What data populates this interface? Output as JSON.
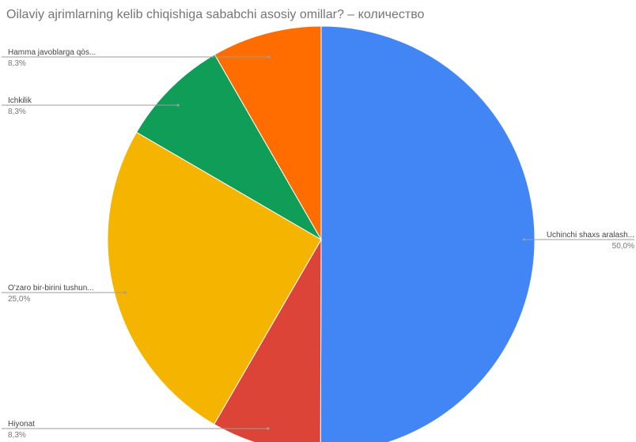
{
  "chart_title": "Oilaviy ajrimlarning kelib chiqishiga sababchi asosiy omillar?  – количество",
  "chart_data": {
    "type": "pie",
    "title": "Oilaviy ajrimlarning kelib chiqishiga sababchi asosiy omillar?  – количество",
    "start": "12 o'clock",
    "direction": "clockwise",
    "legend": "labels beside slices",
    "slices": [
      {
        "label": "Uchinchi shaxs aralash...",
        "value": 50.0,
        "pct_label": "50,0%",
        "color": "#4285F4"
      },
      {
        "label": "Hiyonat",
        "value": 8.3,
        "pct_label": "8,3%",
        "color": "#DB4437"
      },
      {
        "label": "O'zaro bir-birini tushun...",
        "value": 25.0,
        "pct_label": "25,0%",
        "color": "#F4B400"
      },
      {
        "label": "Ichkilik",
        "value": 8.3,
        "pct_label": "8,3%",
        "color": "#0F9D58"
      },
      {
        "label": "Hamma javoblarga qòs...",
        "value": 8.3,
        "pct_label": "8,3%",
        "color": "#FF6D01"
      }
    ]
  }
}
